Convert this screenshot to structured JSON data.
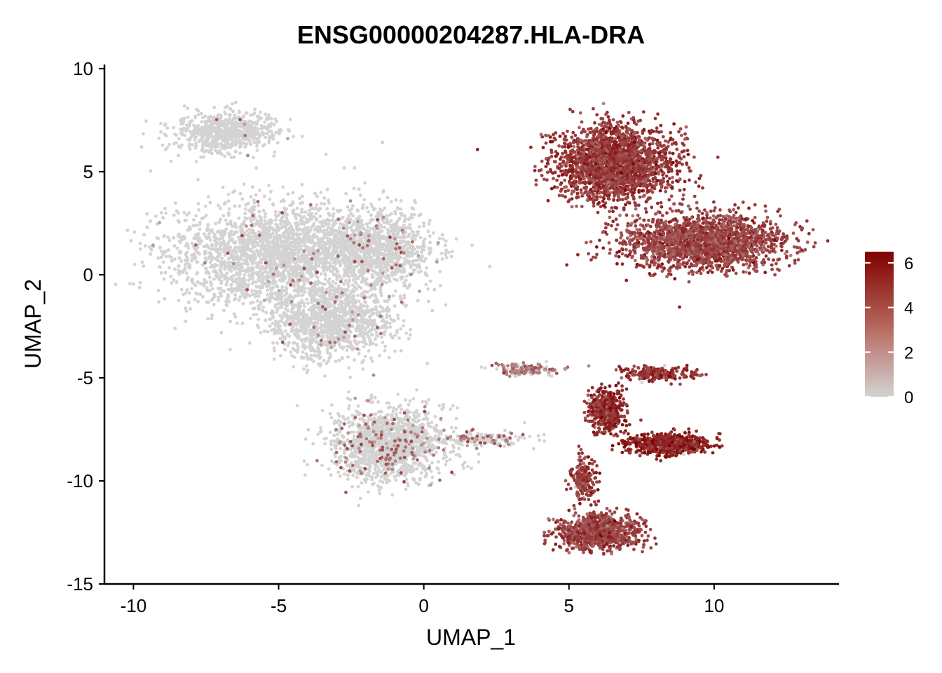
{
  "chart_data": {
    "type": "scatter",
    "title": "ENSG00000204287.HLA-DRA",
    "xlabel": "UMAP_1",
    "ylabel": "UMAP_2",
    "xlim": [
      -11,
      14.3
    ],
    "ylim": [
      -15,
      10.2
    ],
    "xticks": [
      -10,
      -5,
      0,
      5,
      10
    ],
    "yticks": [
      -15,
      -10,
      -5,
      0,
      5,
      10
    ],
    "xtick_labels": [
      "-10",
      "-5",
      "0",
      "5",
      "10"
    ],
    "ytick_labels": [
      "-15",
      "-10",
      "-5",
      "0",
      "5",
      "10"
    ],
    "grid": false,
    "legend": {
      "position": "right",
      "type": "colorbar",
      "min": 0,
      "max": 6.5,
      "ticks": [
        0,
        2,
        4,
        6
      ],
      "tick_labels": [
        "0",
        "2",
        "4",
        "6"
      ],
      "low_color": "#d3d3d3",
      "high_color": "#7f0000"
    },
    "clusters": [
      {
        "name": "upper-left-arm",
        "center": [
          -6.8,
          6.9
        ],
        "spread": [
          1.6,
          0.85
        ],
        "n": 700,
        "expression": 0.05,
        "pos_fraction": 0.01
      },
      {
        "name": "left-main-body",
        "center": [
          -5.0,
          1.0
        ],
        "spread": [
          3.4,
          2.3
        ],
        "n": 3600,
        "expression": 0.05,
        "pos_fraction": 0.015
      },
      {
        "name": "left-lower-body",
        "center": [
          -3.2,
          -2.3
        ],
        "spread": [
          1.9,
          1.6
        ],
        "n": 1200,
        "expression": 0.05,
        "pos_fraction": 0.02
      },
      {
        "name": "left-right-lobe",
        "center": [
          -1.5,
          1.2
        ],
        "spread": [
          1.6,
          1.6
        ],
        "n": 900,
        "expression": 0.05,
        "pos_fraction": 0.04
      },
      {
        "name": "left-tail",
        "center": [
          -1.2,
          -8.2
        ],
        "spread": [
          1.7,
          1.6
        ],
        "n": 1500,
        "expression": 0.05,
        "pos_fraction": 0.1
      },
      {
        "name": "tail-strand",
        "center": [
          2.0,
          -8.0
        ],
        "spread": [
          1.4,
          0.35
        ],
        "n": 160,
        "expression": 0.05,
        "pos_fraction": 0.25
      },
      {
        "name": "upper-right-cluster",
        "center": [
          6.6,
          5.4
        ],
        "spread": [
          1.8,
          1.6
        ],
        "n": 2200,
        "expression": 4.7,
        "pos_fraction": 1.0
      },
      {
        "name": "right-cluster-lower",
        "center": [
          9.6,
          1.6
        ],
        "spread": [
          2.5,
          1.2
        ],
        "n": 2000,
        "expression": 4.4,
        "pos_fraction": 1.0
      },
      {
        "name": "star-center",
        "center": [
          6.3,
          -6.6
        ],
        "spread": [
          0.5,
          0.9
        ],
        "n": 500,
        "expression": 5.2,
        "pos_fraction": 0.98
      },
      {
        "name": "star-arm-right",
        "center": [
          8.4,
          -8.2
        ],
        "spread": [
          1.3,
          0.45
        ],
        "n": 650,
        "expression": 5.4,
        "pos_fraction": 0.97
      },
      {
        "name": "star-arm-upper-right",
        "center": [
          8.1,
          -4.8
        ],
        "spread": [
          1.2,
          0.3
        ],
        "n": 200,
        "expression": 4.9,
        "pos_fraction": 0.95
      },
      {
        "name": "star-arm-left",
        "center": [
          3.6,
          -4.6
        ],
        "spread": [
          1.0,
          0.25
        ],
        "n": 150,
        "expression": 3.0,
        "pos_fraction": 0.6
      },
      {
        "name": "bottom-stalk",
        "center": [
          5.5,
          -9.9
        ],
        "spread": [
          0.4,
          1.0
        ],
        "n": 200,
        "expression": 4.6,
        "pos_fraction": 0.97
      },
      {
        "name": "bottom-blob",
        "center": [
          6.0,
          -12.5
        ],
        "spread": [
          1.2,
          0.75
        ],
        "n": 900,
        "expression": 4.4,
        "pos_fraction": 1.0
      }
    ]
  }
}
